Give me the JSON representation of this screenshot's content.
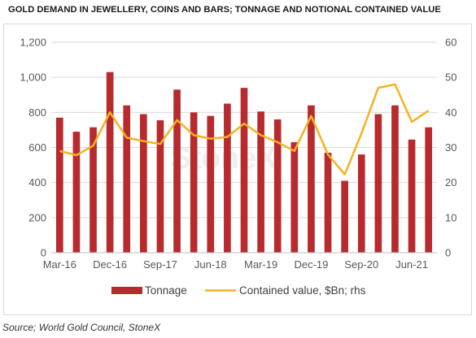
{
  "title": "GOLD DEMAND IN JEWELLERY, COINS AND BARS; TONNAGE AND NOTIONAL CONTAINED VALUE",
  "source": "Source; World Gold Council, StoneX",
  "watermark": "StoneX",
  "colors": {
    "bar": "#b72a2e",
    "line": "#f5b21f",
    "grid": "#d9d9d9",
    "axis_text": "#595959"
  },
  "chart_data": {
    "type": "bar",
    "categories": [
      "Mar-16",
      "Jun-16",
      "Sep-16",
      "Dec-16",
      "Mar-17",
      "Jun-17",
      "Sep-17",
      "Dec-17",
      "Mar-18",
      "Jun-18",
      "Sep-18",
      "Dec-18",
      "Mar-19",
      "Jun-19",
      "Sep-19",
      "Dec-19",
      "Mar-20",
      "Jun-20",
      "Sep-20",
      "Dec-20",
      "Mar-21",
      "Jun-21",
      "Sep-21"
    ],
    "x_tick_labels": [
      "Mar-16",
      "Dec-16",
      "Sep-17",
      "Jun-18",
      "Mar-19",
      "Dec-19",
      "Sep-20",
      "Jun-21"
    ],
    "x_tick_every": 3,
    "series": [
      {
        "name": "Tonnage",
        "type": "bar",
        "axis": "left",
        "values": [
          770,
          690,
          715,
          1030,
          840,
          790,
          755,
          930,
          800,
          780,
          850,
          940,
          805,
          760,
          630,
          840,
          570,
          410,
          560,
          790,
          840,
          645,
          715
        ]
      },
      {
        "name": "Contained value, $Bn; rhs",
        "type": "line",
        "axis": "right",
        "values": [
          29,
          27.8,
          30.5,
          40,
          32.8,
          31.8,
          31,
          37.8,
          33.5,
          32.5,
          33,
          36.8,
          33.5,
          31.5,
          29,
          39,
          28,
          22.3,
          34,
          47,
          48,
          37.3,
          40.5
        ]
      }
    ],
    "y_left": {
      "min": 0,
      "max": 1200,
      "step": 200,
      "tick_labels": [
        "0",
        "200",
        "400",
        "600",
        "800",
        "1,000",
        "1,200"
      ]
    },
    "y_right": {
      "min": 0,
      "max": 60,
      "step": 10,
      "tick_labels": [
        "0",
        "10",
        "20",
        "30",
        "40",
        "50",
        "60"
      ]
    },
    "grid": true,
    "legend": {
      "placement": "bottom",
      "items": [
        {
          "label": "Tonnage",
          "kind": "bar"
        },
        {
          "label": "Contained value, $Bn; rhs",
          "kind": "line"
        }
      ]
    }
  }
}
